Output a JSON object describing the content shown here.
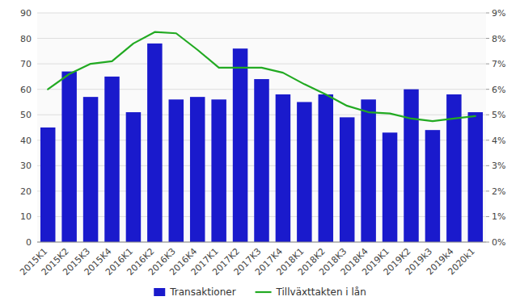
{
  "chart_data": {
    "type": "bar",
    "categories": [
      "2015K1",
      "2015K2",
      "2015K3",
      "2015K4",
      "2016K1",
      "2016K2",
      "2016K3",
      "2016K4",
      "2017K1",
      "2017K2",
      "2017K3",
      "2017K4",
      "2018K1",
      "2018K2",
      "2018K3",
      "2018K4",
      "2019K1",
      "2019K2",
      "2019k3",
      "2019k4",
      "2020k1"
    ],
    "series": [
      {
        "name": "Transaktioner",
        "type": "bar",
        "color": "#1a1acc",
        "values": [
          45,
          67,
          57,
          65,
          51,
          78,
          56,
          57,
          56,
          76,
          64,
          58,
          55,
          58,
          49,
          56,
          43,
          60,
          44,
          58,
          51
        ]
      },
      {
        "name": "Tillväxttakten i lån",
        "type": "line",
        "color": "#22aa22",
        "axis": "y2",
        "values": [
          6.0,
          6.6,
          7.0,
          7.1,
          7.8,
          8.25,
          8.2,
          7.55,
          6.85,
          6.85,
          6.85,
          6.65,
          6.2,
          5.8,
          5.35,
          5.1,
          5.05,
          4.85,
          4.75,
          4.85,
          4.95
        ]
      }
    ],
    "ylim": [
      0,
      90
    ],
    "yticks": [
      0,
      10,
      20,
      30,
      40,
      50,
      60,
      70,
      80,
      90
    ],
    "y2lim": [
      0,
      9
    ],
    "y2ticks": [
      {
        "value": 0,
        "label": "0%"
      },
      {
        "value": 1,
        "label": "1%"
      },
      {
        "value": 2,
        "label": "2%"
      },
      {
        "value": 3,
        "label": "3%"
      },
      {
        "value": 4,
        "label": "4%"
      },
      {
        "value": 5,
        "label": "5%"
      },
      {
        "value": 6,
        "label": "6%"
      },
      {
        "value": 7,
        "label": "7%"
      },
      {
        "value": 8,
        "label": "8%"
      },
      {
        "value": 9,
        "label": "9%"
      }
    ],
    "grid": true,
    "legend": "bottom"
  }
}
